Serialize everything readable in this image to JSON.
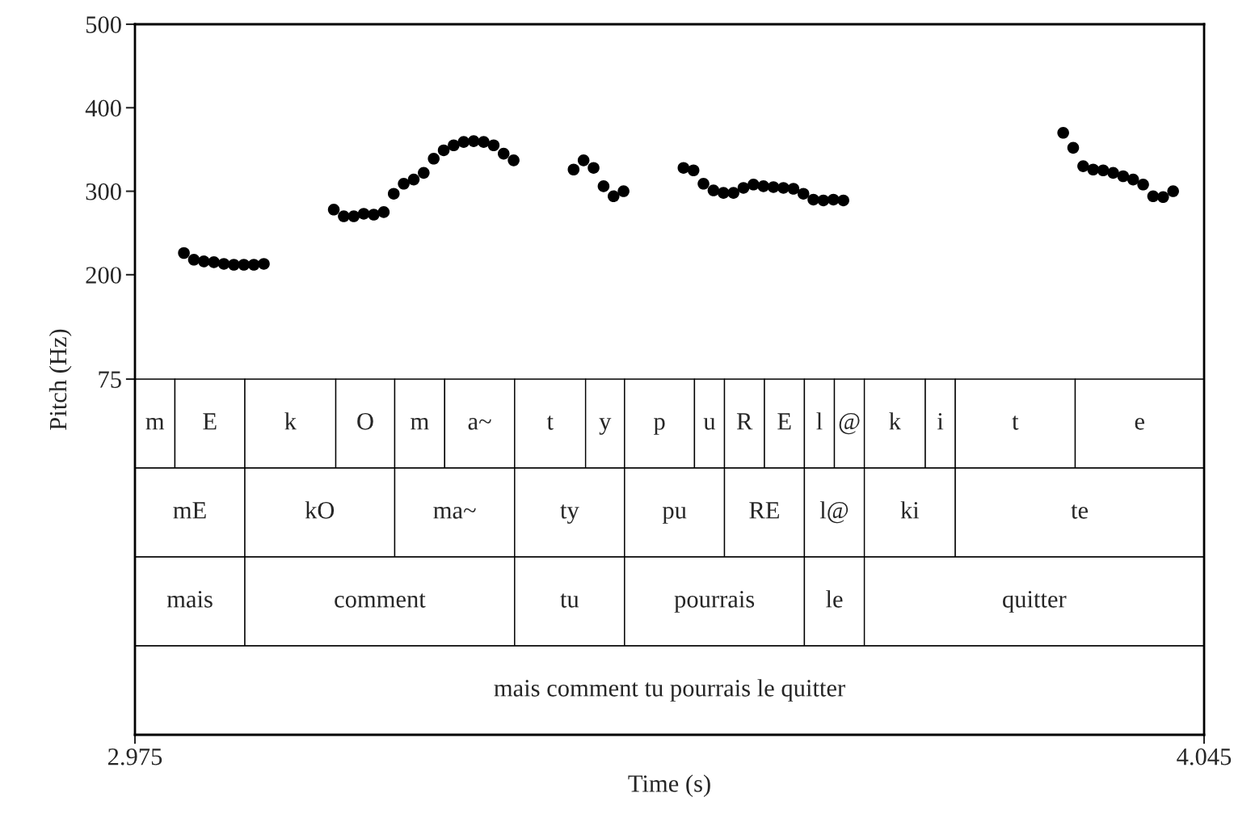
{
  "chart_data": {
    "type": "scatter",
    "ylabel": "Pitch (Hz)",
    "xlabel": "Time (s)",
    "xlim": [
      2.975,
      4.045
    ],
    "xticks": [
      2.975,
      4.045
    ],
    "ylim": [
      -351,
      500
    ],
    "yticks": [
      75,
      200,
      300,
      400,
      500
    ],
    "marker": "circle",
    "series": [
      {
        "color": "#000000",
        "x": [
          3.024,
          3.034,
          3.044,
          3.054,
          3.064,
          3.074,
          3.084,
          3.094,
          3.104
        ],
        "values": [
          226,
          218,
          216,
          215,
          213,
          212,
          212,
          212,
          213
        ]
      },
      {
        "color": "#000000",
        "x": [
          3.174,
          3.184,
          3.194,
          3.204,
          3.214,
          3.224,
          3.234,
          3.244,
          3.254,
          3.264,
          3.274,
          3.284,
          3.294,
          3.304,
          3.314,
          3.324,
          3.334,
          3.344,
          3.354
        ],
        "values": [
          278,
          270,
          270,
          273,
          272,
          275,
          297,
          309,
          314,
          322,
          339,
          349,
          355,
          359,
          360,
          359,
          355,
          345,
          337
        ]
      },
      {
        "color": "#000000",
        "x": [
          3.414,
          3.424,
          3.434,
          3.444,
          3.454,
          3.464
        ],
        "values": [
          326,
          337,
          328,
          306,
          294,
          300
        ]
      },
      {
        "color": "#000000",
        "x": [
          3.524,
          3.534,
          3.544,
          3.554,
          3.564,
          3.574,
          3.584,
          3.594,
          3.604,
          3.614,
          3.624,
          3.634,
          3.644,
          3.654,
          3.664,
          3.674,
          3.684
        ],
        "values": [
          328,
          325,
          309,
          301,
          298,
          298,
          304,
          308,
          306,
          305,
          304,
          303,
          297,
          290,
          289,
          290,
          289
        ]
      },
      {
        "color": "#000000",
        "x": [
          3.904,
          3.914,
          3.924,
          3.934,
          3.944,
          3.954,
          3.964,
          3.974,
          3.984,
          3.994,
          4.004,
          4.014
        ],
        "values": [
          370,
          352,
          330,
          326,
          325,
          322,
          318,
          314,
          308,
          294,
          293,
          300
        ]
      }
    ],
    "bands": [
      {
        "axis": "x",
        "from": 2.975,
        "to": 3.015,
        "label": "m"
      },
      {
        "axis": "x",
        "from": 3.015,
        "to": 3.085,
        "label": "E"
      },
      {
        "axis": "x",
        "from": 3.085,
        "to": 3.176,
        "label": "k"
      },
      {
        "axis": "x",
        "from": 3.176,
        "to": 3.235,
        "label": "O"
      },
      {
        "axis": "x",
        "from": 3.235,
        "to": 3.285,
        "label": "m"
      },
      {
        "axis": "x",
        "from": 3.285,
        "to": 3.355,
        "label": "a~"
      },
      {
        "axis": "x",
        "from": 3.355,
        "to": 3.426,
        "label": "t"
      },
      {
        "axis": "x",
        "from": 3.426,
        "to": 3.465,
        "label": "y"
      },
      {
        "axis": "x",
        "from": 3.465,
        "to": 3.535,
        "label": "p"
      },
      {
        "axis": "x",
        "from": 3.535,
        "to": 3.565,
        "label": "u"
      },
      {
        "axis": "x",
        "from": 3.565,
        "to": 3.605,
        "label": "R"
      },
      {
        "axis": "x",
        "from": 3.605,
        "to": 3.645,
        "label": "E"
      },
      {
        "axis": "x",
        "from": 3.645,
        "to": 3.675,
        "label": "l"
      },
      {
        "axis": "x",
        "from": 3.675,
        "to": 3.705,
        "label": "@"
      },
      {
        "axis": "x",
        "from": 3.705,
        "to": 3.766,
        "label": "k"
      },
      {
        "axis": "x",
        "from": 3.766,
        "to": 3.796,
        "label": "i"
      },
      {
        "axis": "x",
        "from": 3.796,
        "to": 3.916,
        "label": "t"
      },
      {
        "axis": "x",
        "from": 3.916,
        "to": 4.045,
        "label": "e"
      },
      {
        "axis": "x",
        "from": 2.975,
        "to": 3.085,
        "label": "mE"
      },
      {
        "axis": "x",
        "from": 3.085,
        "to": 3.235,
        "label": "kO"
      },
      {
        "axis": "x",
        "from": 3.235,
        "to": 3.355,
        "label": "ma~"
      },
      {
        "axis": "x",
        "from": 3.355,
        "to": 3.465,
        "label": "ty"
      },
      {
        "axis": "x",
        "from": 3.465,
        "to": 3.565,
        "label": "pu"
      },
      {
        "axis": "x",
        "from": 3.565,
        "to": 3.645,
        "label": "RE"
      },
      {
        "axis": "x",
        "from": 3.645,
        "to": 3.705,
        "label": "l@"
      },
      {
        "axis": "x",
        "from": 3.705,
        "to": 3.796,
        "label": "ki"
      },
      {
        "axis": "x",
        "from": 3.796,
        "to": 4.045,
        "label": "te"
      },
      {
        "axis": "x",
        "from": 2.975,
        "to": 3.085,
        "label": "mais"
      },
      {
        "axis": "x",
        "from": 3.085,
        "to": 3.355,
        "label": "comment"
      },
      {
        "axis": "x",
        "from": 3.355,
        "to": 3.465,
        "label": "tu"
      },
      {
        "axis": "x",
        "from": 3.465,
        "to": 3.645,
        "label": "pourrais"
      },
      {
        "axis": "x",
        "from": 3.645,
        "to": 3.705,
        "label": "le"
      },
      {
        "axis": "x",
        "from": 3.705,
        "to": 4.045,
        "label": "quitter"
      },
      {
        "axis": "x",
        "from": 2.975,
        "to": 4.045,
        "label": "mais comment tu pourrais le quitter"
      }
    ]
  }
}
